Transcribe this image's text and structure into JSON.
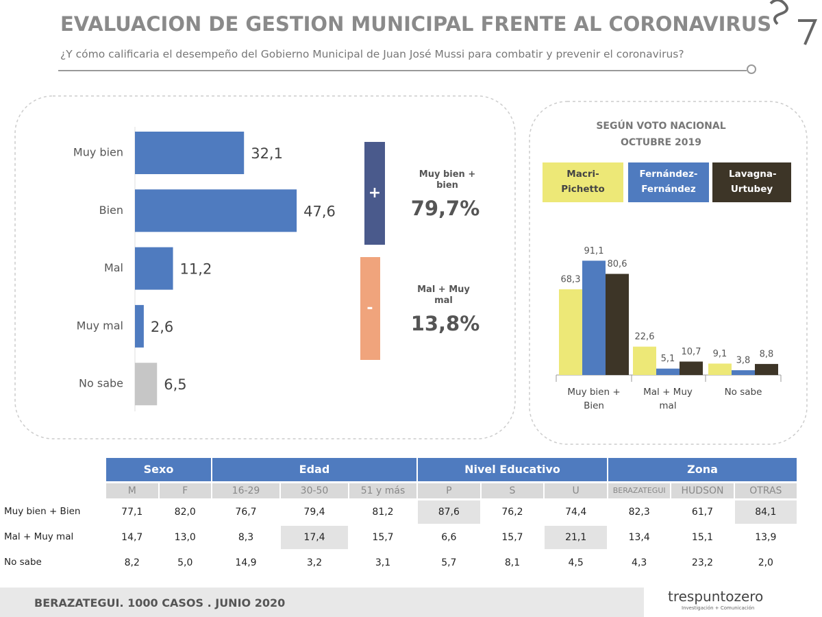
{
  "header": {
    "title": "EVALUACION DE GESTION MUNICIPAL FRENTE AL CORONAVIRUS",
    "subtitle": "¿Y cómo calificaria el desempeño del Gobierno Municipal de Juan José Mussi para combatir y prevenir el coronavirus?"
  },
  "chart_data": [
    {
      "type": "hbar",
      "categories": [
        "Muy bien",
        "Bien",
        "Mal",
        "Muy mal",
        "No sabe"
      ],
      "values": [
        32.1,
        47.6,
        11.2,
        2.6,
        6.5
      ],
      "value_labels": [
        "32,1",
        "47,6",
        "11,2",
        "2,6",
        "6,5"
      ],
      "colors": [
        "#4f7bbf",
        "#4f7bbf",
        "#4f7bbf",
        "#4f7bbf",
        "#c6c6c6"
      ],
      "xlim": [
        0,
        50
      ]
    },
    {
      "type": "bar",
      "title": "SEGÚN VOTO NACIONAL OCTUBRE 2019",
      "categories": [
        "Muy bien + Bien",
        "Mal + Muy mal",
        "No sabe"
      ],
      "ylim": [
        0,
        100
      ],
      "series": [
        {
          "name": "Macri-Pichetto",
          "color": "#ede877",
          "values": [
            68.3,
            22.6,
            9.1
          ],
          "value_labels": [
            "68,3",
            "22,6",
            "9,1"
          ]
        },
        {
          "name": "Fernández-Fernández",
          "color": "#4f7bbf",
          "values": [
            91.1,
            5.1,
            3.8
          ],
          "value_labels": [
            "91,1",
            "5,1",
            "3,8"
          ]
        },
        {
          "name": "Lavagna-Urtubey",
          "color": "#3d3527",
          "values": [
            80.6,
            10.7,
            8.8
          ],
          "value_labels": [
            "80,6",
            "10,7",
            "8,8"
          ]
        }
      ]
    }
  ],
  "summary": [
    {
      "sign": "+",
      "label": "Muy bien + bien",
      "value": "79,7%"
    },
    {
      "sign": "-",
      "label": "Mal + Muy mal",
      "value": "13,8%"
    }
  ],
  "table": {
    "groups": [
      {
        "label": "Sexo",
        "columns": [
          "M",
          "F"
        ]
      },
      {
        "label": "Edad",
        "columns": [
          "16-29",
          "30-50",
          "51 y más"
        ]
      },
      {
        "label": "Nivel Educativo",
        "columns": [
          "P",
          "S",
          "U"
        ]
      },
      {
        "label": "Zona",
        "columns": [
          "BERAZATEGUI",
          "HUDSON",
          "OTRAS"
        ]
      }
    ],
    "rows": [
      {
        "label": "Muy bien + Bien",
        "cells": [
          "77,1",
          "82,0",
          "76,7",
          "79,4",
          "81,2",
          "87,6",
          "76,2",
          "74,4",
          "82,3",
          "61,7",
          "84,1"
        ]
      },
      {
        "label": "Mal + Muy mal",
        "cells": [
          "14,7",
          "13,0",
          "8,3",
          "17,4",
          "15,7",
          "6,6",
          "15,7",
          "21,1",
          "13,4",
          "15,1",
          "13,9"
        ]
      },
      {
        "label": "No sabe",
        "cells": [
          "8,2",
          "5,0",
          "14,9",
          "3,2",
          "3,1",
          "5,7",
          "8,1",
          "4,5",
          "4,3",
          "23,2",
          "2,0"
        ]
      }
    ]
  },
  "footer": {
    "left": "BERAZATEGUI. 1000 CASOS . JUNIO 2020",
    "brand": "trespuntozero",
    "tagline": "Investigación + Comunicación"
  }
}
